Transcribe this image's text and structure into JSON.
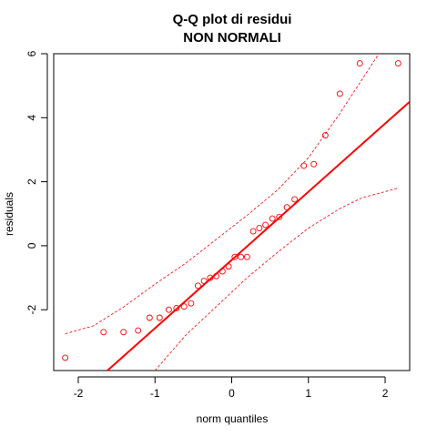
{
  "chart_data": {
    "type": "scatter",
    "title": "Q-Q plot di residui",
    "subtitle": "NON NORMALI",
    "xlabel": "norm quantiles",
    "ylabel": "residuals",
    "xlim": [
      -2.32,
      2.32
    ],
    "ylim": [
      -3.9,
      6.0
    ],
    "x_ticks": [
      -2,
      -1,
      0,
      1,
      2
    ],
    "y_ticks": [
      -2,
      0,
      2,
      4,
      6
    ],
    "grid": false,
    "colors": {
      "points": "#ff0000",
      "line": "#ff0000",
      "envelope": "#ff0000"
    },
    "points": {
      "x": [
        -2.17,
        -1.67,
        -1.41,
        -1.22,
        -1.07,
        -0.94,
        -0.82,
        -0.72,
        -0.62,
        -0.53,
        -0.44,
        -0.36,
        -0.28,
        -0.2,
        -0.12,
        -0.04,
        0.04,
        0.12,
        0.2,
        0.28,
        0.36,
        0.44,
        0.53,
        0.62,
        0.72,
        0.82,
        0.94,
        1.07,
        1.22,
        1.41,
        1.67,
        2.17
      ],
      "y": [
        -3.5,
        -2.7,
        -2.7,
        -2.65,
        -2.25,
        -2.25,
        -2.0,
        -1.95,
        -1.9,
        -1.8,
        -1.25,
        -1.1,
        -1.0,
        -0.95,
        -0.8,
        -0.65,
        -0.35,
        -0.35,
        -0.35,
        0.45,
        0.55,
        0.65,
        0.85,
        0.9,
        1.2,
        1.45,
        2.5,
        2.55,
        3.45,
        4.75,
        5.7,
        5.7
      ]
    },
    "reference_line": {
      "x": [
        -1.62,
        2.32
      ],
      "y": [
        -3.9,
        4.5
      ]
    },
    "envelope_upper": {
      "x": [
        -2.17,
        -1.8,
        -1.4,
        -1.0,
        -0.6,
        -0.2,
        0.2,
        0.6,
        1.0,
        1.4,
        2.0
      ],
      "y": [
        -2.75,
        -2.5,
        -1.9,
        -1.2,
        -0.55,
        0.2,
        0.95,
        1.75,
        2.75,
        4.1,
        6.3
      ]
    },
    "envelope_lower": {
      "x": [
        -1.0,
        -0.6,
        -0.2,
        0.2,
        0.6,
        1.0,
        1.4,
        1.7,
        2.17
      ],
      "y": [
        -3.9,
        -2.8,
        -1.9,
        -1.0,
        -0.2,
        0.55,
        1.15,
        1.5,
        1.8
      ]
    }
  }
}
